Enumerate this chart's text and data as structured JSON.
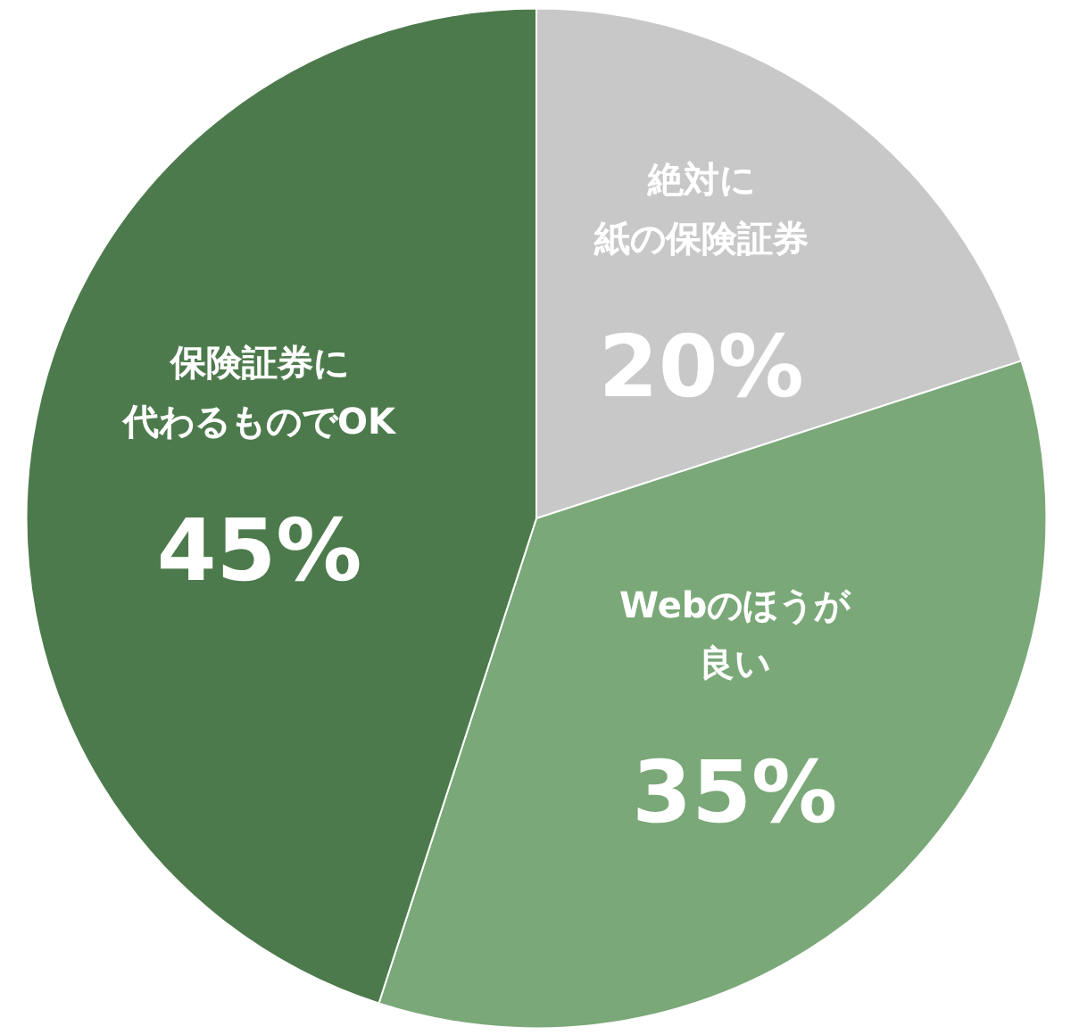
{
  "chart_data": {
    "type": "pie",
    "categories": [
      "絶対に紙の保険証券",
      "Webのほうが良い",
      "保険証券に代わるものでOK"
    ],
    "values": [
      20,
      35,
      45
    ],
    "colors": [
      "#c8c8c8",
      "#7aa878",
      "#4d7a4c"
    ],
    "value_labels": [
      "20%",
      "35%",
      "45%"
    ]
  }
}
